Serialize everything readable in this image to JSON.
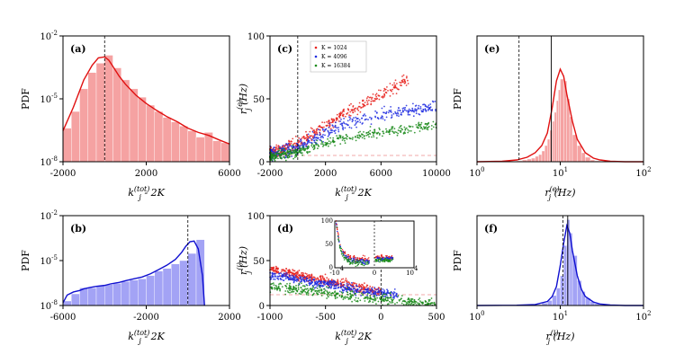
{
  "chart_data": [
    {
      "panel": "a",
      "type": "histogram",
      "panel_label": "(a)",
      "xlabel": "k_j^{(tot)} - 2K",
      "ylabel": "PDF",
      "yscale": "log",
      "xlim": [
        -2000,
        6000
      ],
      "ylim": [
        1e-08,
        0.01
      ],
      "xticks": [
        "-2000",
        "2000",
        "6000"
      ],
      "xtick_values": [
        -2000,
        2000,
        6000
      ],
      "yticks": [
        "10^-2",
        "10^-5",
        "10^-8"
      ],
      "ytick_values": [
        0.01,
        1e-05,
        1e-08
      ],
      "bar_color": "#f28b8b",
      "line_color": "#e01010",
      "vline_color": "#000000",
      "bin_edges": [
        -2000,
        -1600,
        -1200,
        -800,
        -400,
        0,
        400,
        800,
        1200,
        1600,
        2000,
        2400,
        2800,
        3200,
        3600,
        4000,
        4400,
        4800,
        5200,
        5600,
        6000
      ],
      "bar_values": [
        4e-07,
        2.5e-06,
        3e-05,
        0.00018,
        0.0005,
        0.0012,
        0.0003,
        8e-05,
        3e-05,
        1.2e-05,
        5e-06,
        2.5e-06,
        1.3e-06,
        8e-07,
        5e-07,
        3e-07,
        1.5e-07,
        2.5e-07,
        1e-07,
        8e-08
      ],
      "kde_x": [
        -2000,
        -1500,
        -1000,
        -600,
        -300,
        0,
        200,
        400,
        700,
        1000,
        1500,
        2000,
        2500,
        3000,
        3500,
        4000,
        4500,
        5000,
        5500,
        6000
      ],
      "kde_y": [
        3e-07,
        4e-06,
        8e-05,
        0.0004,
        0.0009,
        0.001,
        0.0007,
        0.00035,
        0.00012,
        5e-05,
        1.5e-05,
        6e-06,
        2.8e-06,
        1.4e-06,
        8e-07,
        4e-07,
        2.5e-07,
        1.8e-07,
        1.1e-07,
        7e-08
      ],
      "vlines": [
        0
      ]
    },
    {
      "panel": "b",
      "type": "histogram",
      "panel_label": "(b)",
      "xlabel": "k_j^{(tot)} - 2K",
      "ylabel": "PDF",
      "yscale": "log",
      "xlim": [
        -6000,
        2000
      ],
      "ylim": [
        1e-08,
        0.01
      ],
      "xticks": [
        "-6000",
        "-2000",
        "2000"
      ],
      "xtick_values": [
        -6000,
        -2000,
        2000
      ],
      "yticks": [
        "10^-2",
        "10^-5",
        "10^-8"
      ],
      "ytick_values": [
        0.01,
        1e-05,
        1e-08
      ],
      "bar_color": "#8c8cf2",
      "line_color": "#1010d0",
      "vline_color": "#000000",
      "bin_edges": [
        -6000,
        -5600,
        -5200,
        -4800,
        -4400,
        -4000,
        -3600,
        -3200,
        -2800,
        -2400,
        -2000,
        -1600,
        -1200,
        -800,
        -400,
        0,
        400,
        800
      ],
      "bar_values": [
        2e-08,
        6e-08,
        1.5e-07,
        1.5e-07,
        2e-07,
        2.5e-07,
        3e-07,
        4e-07,
        5e-07,
        6e-07,
        1e-06,
        2e-06,
        3e-06,
        6e-06,
        1e-05,
        3e-05,
        0.00025
      ],
      "kde_x": [
        -6000,
        -5800,
        -5500,
        -5200,
        -5000,
        -4700,
        -4400,
        -4000,
        -3700,
        -3300,
        -3000,
        -2600,
        -2200,
        -1800,
        -1400,
        -1000,
        -600,
        -300,
        -100,
        100,
        300,
        500,
        700,
        800
      ],
      "kde_y": [
        1.5e-08,
        5e-08,
        8e-08,
        1e-07,
        1.3e-07,
        1.6e-07,
        1.9e-07,
        2.2e-07,
        2.8e-07,
        3.5e-07,
        4.5e-07,
        6e-07,
        8e-07,
        1.3e-06,
        2.5e-06,
        5e-06,
        1.2e-05,
        3.5e-05,
        9e-05,
        0.00018,
        0.0002,
        6e-05,
        1e-06,
        1e-08
      ],
      "vlines": [
        0
      ]
    },
    {
      "panel": "c",
      "type": "scatter",
      "panel_label": "(c)",
      "xlabel": "k_j^{(tot)} - 2K",
      "ylabel": "r_j^{(e)} (Hz)",
      "xlim": [
        -2000,
        10000
      ],
      "ylim": [
        0,
        100
      ],
      "xticks": [
        "-2000",
        "2000",
        "6000",
        "10000"
      ],
      "xtick_values": [
        -2000,
        2000,
        6000,
        10000
      ],
      "yticks": [
        "0",
        "50",
        "100"
      ],
      "ytick_values": [
        0,
        50,
        100
      ],
      "legend_position": "top-left",
      "series": [
        {
          "name": "K = 1024",
          "color": "#e8231e",
          "x_end": 8000,
          "trend_x": [
            -1500,
            0,
            1500,
            3000,
            5000,
            7000,
            8000
          ],
          "trend_y": [
            8,
            14,
            25,
            36,
            48,
            60,
            65
          ],
          "spread": 2.5
        },
        {
          "name": "K = 4096",
          "color": "#1f2be0",
          "x_end": 10000,
          "trend_x": [
            -1500,
            0,
            1500,
            3000,
            5000,
            7000,
            9000,
            10000
          ],
          "trend_y": [
            6,
            11,
            20,
            28,
            35,
            40,
            42,
            44
          ],
          "spread": 2.5
        },
        {
          "name": "K = 16384",
          "color": "#1a8a1a",
          "x_end": 10000,
          "trend_x": [
            -2000,
            0,
            1500,
            3000,
            5000,
            7000,
            9000,
            10000
          ],
          "trend_y": [
            4,
            8,
            13,
            18,
            22,
            25,
            28,
            29
          ],
          "spread": 2
        }
      ],
      "hline_y": 5,
      "hline_color": "#f0a8a8",
      "vlines": [
        0
      ]
    },
    {
      "panel": "d",
      "type": "scatter",
      "panel_label": "(d)",
      "xlabel": "k_j^{(tot)} - 2K",
      "ylabel": "r_j^{(i)} (Hz)",
      "xlim": [
        -1000,
        500
      ],
      "ylim": [
        0,
        100
      ],
      "xticks": [
        "-1000",
        "-500",
        "0",
        "500"
      ],
      "xtick_values": [
        -1000,
        -500,
        0,
        500
      ],
      "yticks": [
        "0",
        "50",
        "100"
      ],
      "ytick_values": [
        0,
        50,
        100
      ],
      "series": [
        {
          "name": "K = 1024",
          "color": "#e8231e",
          "x_start": -1000,
          "x_end": 0,
          "trend_x": [
            -1000,
            -600,
            -200,
            0
          ],
          "trend_y": [
            40,
            30,
            20,
            15
          ],
          "spread": 2.5
        },
        {
          "name": "K = 4096",
          "color": "#1f2be0",
          "x_start": -1000,
          "x_end": 150,
          "trend_x": [
            -1000,
            -600,
            -200,
            150
          ],
          "trend_y": [
            34,
            26,
            17,
            12
          ],
          "spread": 2.5
        },
        {
          "name": "K = 16384",
          "color": "#1a8a1a",
          "x_start": -1000,
          "x_end": 500,
          "trend_x": [
            -1000,
            -600,
            -200,
            200,
            500
          ],
          "trend_y": [
            21,
            16,
            10,
            4,
            2
          ],
          "spread": 3
        }
      ],
      "hline_y": 12,
      "hline_color": "#f0a8a8",
      "vlines": [
        0
      ],
      "inset": {
        "xlim": [
          -10000,
          10000
        ],
        "ylim": [
          0,
          100
        ],
        "xticks": [
          "-10^4",
          "0",
          "10^4"
        ],
        "yticks": [
          "0",
          "50",
          "100"
        ]
      }
    },
    {
      "panel": "e",
      "type": "histogram",
      "panel_label": "(e)",
      "xlabel": "r_j^{(e)} (Hz)",
      "ylabel": "PDF",
      "xscale": "log",
      "xlim": [
        1,
        100
      ],
      "ylim": [
        0,
        1.4
      ],
      "xticks": [
        "10^0",
        "10^1",
        "10^2"
      ],
      "xtick_values": [
        1,
        10,
        100
      ],
      "bar_color": "#f28b8b",
      "line_color": "#e01010",
      "bin_edges": [
        3,
        3.5,
        4,
        4.5,
        5,
        5.5,
        6,
        6.5,
        7,
        7.5,
        8,
        8.5,
        9,
        9.5,
        10,
        11,
        12,
        13,
        14,
        16,
        18,
        20,
        23,
        26,
        30
      ],
      "bar_values": [
        0.01,
        0.02,
        0.03,
        0.04,
        0.06,
        0.08,
        0.12,
        0.18,
        0.25,
        0.35,
        0.45,
        0.55,
        0.68,
        0.8,
        0.92,
        0.9,
        0.7,
        0.5,
        0.3,
        0.18,
        0.1,
        0.05,
        0.02,
        0.01
      ],
      "kde_x": [
        1,
        2,
        3,
        4,
        5,
        6,
        7,
        8,
        9,
        10,
        11,
        12,
        14,
        16,
        20,
        25,
        30,
        40,
        60,
        100
      ],
      "kde_y": [
        0,
        0.005,
        0.02,
        0.05,
        0.1,
        0.18,
        0.32,
        0.6,
        0.9,
        1.03,
        0.95,
        0.75,
        0.45,
        0.25,
        0.1,
        0.04,
        0.02,
        0.005,
        0,
        0
      ],
      "vlines": [
        3.2,
        7.8
      ],
      "vline_styles": [
        "dashed",
        "solid"
      ]
    },
    {
      "panel": "f",
      "type": "histogram",
      "panel_label": "(f)",
      "xlabel": "r_j^{(i)} (Hz)",
      "ylabel": "PDF",
      "xscale": "log",
      "xlim": [
        1,
        100
      ],
      "ylim": [
        0,
        1.8
      ],
      "xticks": [
        "10^0",
        "10^1",
        "10^2"
      ],
      "xtick_values": [
        1,
        10,
        100
      ],
      "bar_color": "#8c8cf2",
      "line_color": "#1010d0",
      "bin_edges": [
        5,
        6,
        7,
        8,
        9,
        10,
        11,
        12,
        13,
        14,
        16,
        18,
        20,
        23,
        26,
        30,
        35
      ],
      "bar_values": [
        0.02,
        0.05,
        0.1,
        0.2,
        0.35,
        0.6,
        1.2,
        1.72,
        1.45,
        1.0,
        0.5,
        0.28,
        0.15,
        0.08,
        0.04,
        0.02
      ],
      "kde_x": [
        1,
        3,
        5,
        7,
        8,
        9,
        10,
        11,
        12,
        13,
        14,
        16,
        18,
        20,
        25,
        30,
        40,
        60,
        100
      ],
      "kde_y": [
        0,
        0.005,
        0.02,
        0.08,
        0.18,
        0.38,
        0.8,
        1.25,
        1.6,
        1.45,
        1.1,
        0.6,
        0.32,
        0.18,
        0.07,
        0.03,
        0.01,
        0,
        0
      ],
      "vlines": [
        10.8,
        12.3
      ],
      "vline_styles": [
        "dashed",
        "solid"
      ]
    }
  ]
}
